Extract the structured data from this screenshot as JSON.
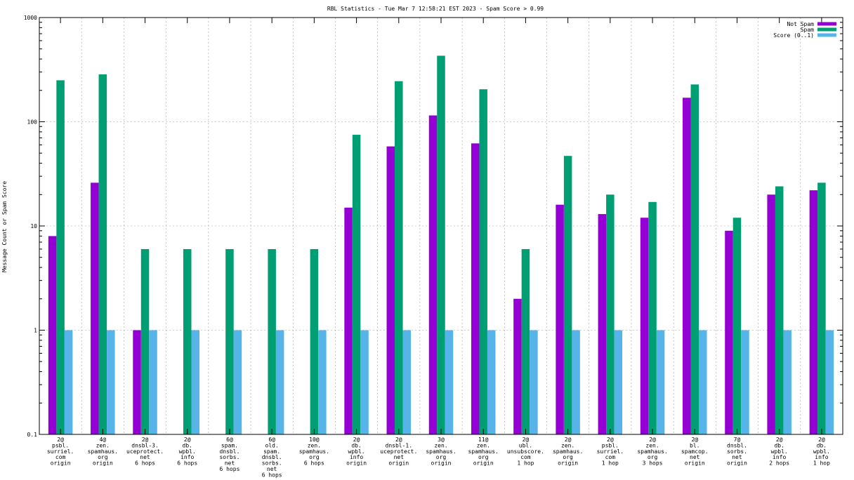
{
  "chart_data": {
    "type": "bar",
    "title": "RBL Statistics - Tue Mar  7 12:58:21 EST 2023 - Spam Score > 0.99",
    "xlabel": "",
    "ylabel": "Message Count or Spam Score",
    "yscale": "log",
    "ylim": [
      0.1,
      1000
    ],
    "yticks": [
      "0.1",
      "1",
      "10",
      "100",
      "1000"
    ],
    "grid": true,
    "legend_position": "top-right",
    "categories": [
      [
        "2@",
        "psbl.",
        "surriel.",
        "com",
        "origin"
      ],
      [
        "4@",
        "zen.",
        "spamhaus.",
        "org",
        "origin"
      ],
      [
        "2@",
        "dnsbl-3.",
        "uceprotect.",
        "net",
        "6 hops"
      ],
      [
        "2@",
        "db.",
        "wpbl.",
        "info",
        "6 hops"
      ],
      [
        "6@",
        "spam.",
        "dnsbl.",
        "sorbs.",
        "net",
        "6 hops"
      ],
      [
        "6@",
        "old.",
        "spam.",
        "dnsbl.",
        "sorbs.",
        "net",
        "6 hops"
      ],
      [
        "10@",
        "zen.",
        "spamhaus.",
        "org",
        "6 hops"
      ],
      [
        "2@",
        "db.",
        "wpbl.",
        "info",
        "origin"
      ],
      [
        "2@",
        "dnsbl-1.",
        "uceprotect.",
        "net",
        "origin"
      ],
      [
        "3@",
        "zen.",
        "spamhaus.",
        "org",
        "origin"
      ],
      [
        "11@",
        "zen.",
        "spamhaus.",
        "org",
        "origin"
      ],
      [
        "2@",
        "ubl.",
        "unsubscore.",
        "com",
        "1 hop"
      ],
      [
        "2@",
        "zen.",
        "spamhaus.",
        "org",
        "origin"
      ],
      [
        "2@",
        "psbl.",
        "surriel.",
        "com",
        "1 hop"
      ],
      [
        "2@",
        "zen.",
        "spamhaus.",
        "org",
        "3 hops"
      ],
      [
        "2@",
        "bl.",
        "spamcop.",
        "net",
        "origin"
      ],
      [
        "7@",
        "dnsbl.",
        "sorbs.",
        "net",
        "origin"
      ],
      [
        "2@",
        "db.",
        "wpbl.",
        "info",
        "2 hops"
      ],
      [
        "2@",
        "db.",
        "wpbl.",
        "info",
        "1 hop"
      ]
    ],
    "series": [
      {
        "name": "Not Spam",
        "color": "#9400d3",
        "values": [
          8,
          26,
          1,
          null,
          null,
          null,
          null,
          15,
          58,
          115,
          62,
          2,
          16,
          13,
          12,
          170,
          9,
          20,
          22
        ]
      },
      {
        "name": "Spam",
        "color": "#009e73",
        "values": [
          250,
          285,
          6,
          6,
          6,
          6,
          6,
          75,
          245,
          430,
          205,
          6,
          47,
          20,
          17,
          228,
          12,
          24,
          26
        ]
      },
      {
        "name": "Score (0..1)",
        "color": "#56b4e9",
        "values": [
          1,
          1,
          1,
          1,
          1,
          1,
          1,
          1,
          1,
          1,
          1,
          1,
          1,
          1,
          1,
          1,
          1,
          1,
          1
        ]
      }
    ]
  }
}
